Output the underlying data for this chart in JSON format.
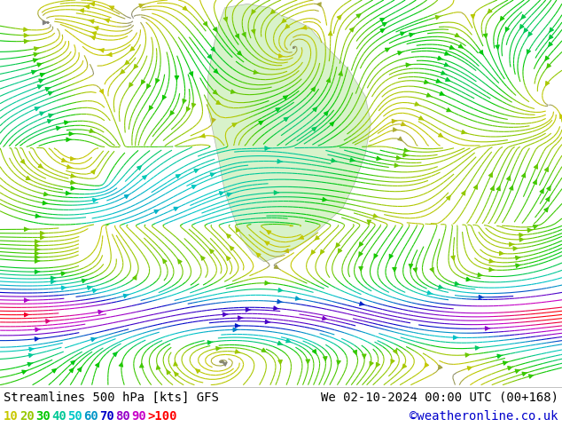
{
  "title_left": "Streamlines 500 hPa [kts] GFS",
  "title_right": "We 02-10-2024 00:00 UTC (00+168)",
  "credit": "©weatheronline.co.uk",
  "legend_values": [
    "10",
    "20",
    "30",
    "40",
    "50",
    "60",
    "70",
    "80",
    "90",
    ">100"
  ],
  "legend_colors": [
    "#c8c800",
    "#96c800",
    "#00c800",
    "#00c896",
    "#00c8c8",
    "#0096c8",
    "#0000c8",
    "#9600c8",
    "#c800c8",
    "#ff0000"
  ],
  "bg_color": "#e0e0e0",
  "map_bg": "#e8e8e8",
  "bottom_bar_color": "#ffffff",
  "title_font_size": 10,
  "legend_font_size": 10,
  "credit_color": "#0000cc",
  "title_color": "#000000"
}
